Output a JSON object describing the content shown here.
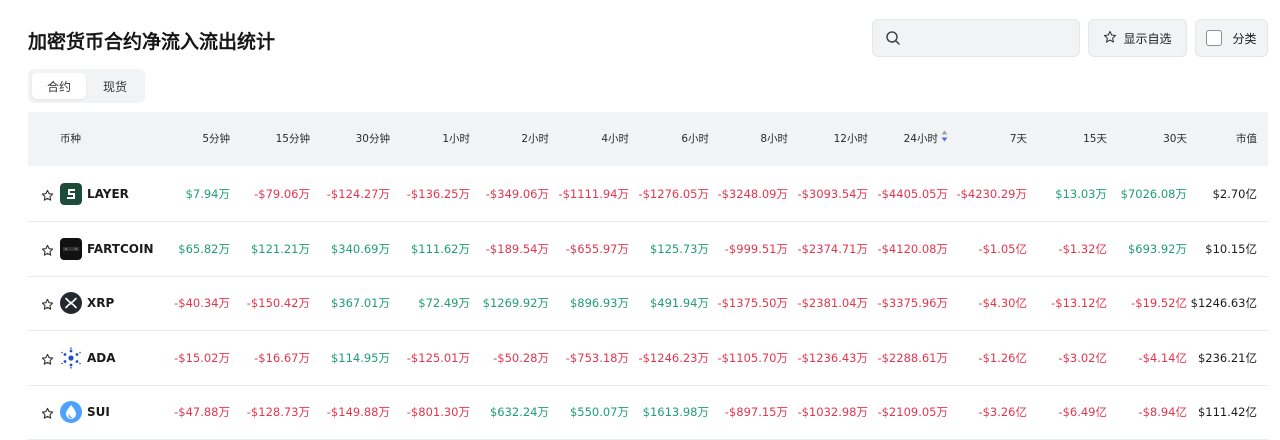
{
  "header": {
    "title": "加密货币合约净流入流出统计",
    "search_placeholder": "",
    "watchlist_label": "显示自选",
    "category_label": "分类"
  },
  "tabs": [
    {
      "label": "合约",
      "active": true
    },
    {
      "label": "现货",
      "active": false
    }
  ],
  "table": {
    "columns": [
      "币种",
      "5分钟",
      "15分钟",
      "30分钟",
      "1小时",
      "2小时",
      "4小时",
      "6小时",
      "8小时",
      "12小时",
      "24小时",
      "7天",
      "15天",
      "30天",
      "市值"
    ],
    "sorted_column": "24小时",
    "rows": [
      {
        "coin": "LAYER",
        "icon": "layer-icon",
        "values": [
          "$7.94万",
          "-$79.06万",
          "-$124.27万",
          "-$136.25万",
          "-$349.06万",
          "-$1111.94万",
          "-$1276.05万",
          "-$3248.09万",
          "-$3093.54万",
          "-$4405.05万",
          "-$4230.29万",
          "$13.03万",
          "$7026.08万"
        ],
        "market_cap": "$2.70亿"
      },
      {
        "coin": "FARTCOIN",
        "icon": "fartcoin-icon",
        "values": [
          "$65.82万",
          "$121.21万",
          "$340.69万",
          "$111.62万",
          "-$189.54万",
          "-$655.97万",
          "$125.73万",
          "-$999.51万",
          "-$2374.71万",
          "-$4120.08万",
          "-$1.05亿",
          "-$1.32亿",
          "$693.92万"
        ],
        "market_cap": "$10.15亿"
      },
      {
        "coin": "XRP",
        "icon": "xrp-icon",
        "values": [
          "-$40.34万",
          "-$150.42万",
          "$367.01万",
          "$72.49万",
          "$1269.92万",
          "$896.93万",
          "$491.94万",
          "-$1375.50万",
          "-$2381.04万",
          "-$3375.96万",
          "-$4.30亿",
          "-$13.12亿",
          "-$19.52亿"
        ],
        "market_cap": "$1246.63亿"
      },
      {
        "coin": "ADA",
        "icon": "ada-icon",
        "values": [
          "-$15.02万",
          "-$16.67万",
          "$114.95万",
          "-$125.01万",
          "-$50.28万",
          "-$753.18万",
          "-$1246.23万",
          "-$1105.70万",
          "-$1236.43万",
          "-$2288.61万",
          "-$1.26亿",
          "-$3.02亿",
          "-$4.14亿"
        ],
        "market_cap": "$236.21亿"
      },
      {
        "coin": "SUI",
        "icon": "sui-icon",
        "values": [
          "-$47.88万",
          "-$128.73万",
          "-$149.88万",
          "-$801.30万",
          "$632.24万",
          "$550.07万",
          "$1613.98万",
          "-$897.15万",
          "-$1032.98万",
          "-$2109.05万",
          "-$3.26亿",
          "-$6.49亿",
          "-$8.94亿"
        ],
        "market_cap": "$111.42亿"
      }
    ]
  },
  "colors": {
    "positive": "#1f9e72",
    "negative": "#e2364f",
    "header_bg": "#f2f3f5"
  }
}
